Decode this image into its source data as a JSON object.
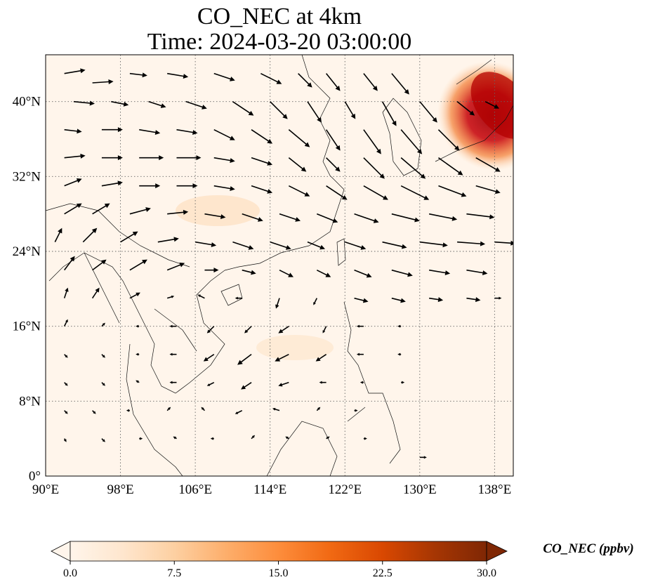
{
  "title": {
    "line1": "CO_NEC at 4km",
    "line2": "Time: 2024-03-20 03:00:00"
  },
  "map": {
    "extent": {
      "lon": [
        90,
        140
      ],
      "lat": [
        0,
        45
      ]
    },
    "lon_ticks": [
      {
        "value": 90,
        "label": "90°E"
      },
      {
        "value": 98,
        "label": "98°E"
      },
      {
        "value": 106,
        "label": "106°E"
      },
      {
        "value": 114,
        "label": "114°E"
      },
      {
        "value": 122,
        "label": "122°E"
      },
      {
        "value": 130,
        "label": "130°E"
      },
      {
        "value": 138,
        "label": "138°E"
      }
    ],
    "lat_ticks": [
      {
        "value": 0,
        "label": "0°"
      },
      {
        "value": 8,
        "label": "8°N"
      },
      {
        "value": 16,
        "label": "16°N"
      },
      {
        "value": 24,
        "label": "24°N"
      },
      {
        "value": 32,
        "label": "32°N"
      },
      {
        "value": 40,
        "label": "40°N"
      }
    ],
    "gridlines": true,
    "background_color": "#fff5eb",
    "plume_color": "#b30000",
    "plume_note_region": "high CO_NEC over Japan / Sea of Japan (lon 132–140, lat 33–45)"
  },
  "colorbar": {
    "label": "CO_NEC (ppbv)",
    "min": 0,
    "max": 30,
    "ticks": [
      {
        "value": 0,
        "label": "0.0"
      },
      {
        "value": 7.5,
        "label": "7.5"
      },
      {
        "value": 15,
        "label": "15.0"
      },
      {
        "value": 22.5,
        "label": "22.5"
      },
      {
        "value": 30,
        "label": "30.0"
      }
    ],
    "extend": "both",
    "colormap": [
      "#fff5eb",
      "#fee6ce",
      "#fdd0a2",
      "#fdae6b",
      "#fd8d3c",
      "#f16913",
      "#d94801",
      "#a63603",
      "#7f2704"
    ]
  },
  "wind_vectors": [
    [
      92,
      43,
      3,
      0.5
    ],
    [
      95,
      42,
      3,
      0.2
    ],
    [
      99,
      43,
      2.5,
      -0.3
    ],
    [
      103,
      43,
      3,
      -0.5
    ],
    [
      108,
      43,
      3,
      -1
    ],
    [
      113,
      43,
      3,
      -1.5
    ],
    [
      117,
      43,
      2,
      -2
    ],
    [
      120,
      43,
      2,
      -2.5
    ],
    [
      124,
      43,
      2,
      -2.5
    ],
    [
      127,
      43,
      2.5,
      -3
    ],
    [
      93,
      40,
      3,
      -0.3
    ],
    [
      97,
      40,
      2.5,
      -0.5
    ],
    [
      101,
      40,
      2.5,
      -0.8
    ],
    [
      105,
      40,
      3,
      -1
    ],
    [
      110,
      40,
      3,
      -2
    ],
    [
      114,
      40,
      2.5,
      -2.5
    ],
    [
      118,
      40,
      2,
      -3
    ],
    [
      122,
      40,
      1.5,
      -2.5
    ],
    [
      126,
      40,
      2,
      -3.5
    ],
    [
      130,
      40,
      2.5,
      -3
    ],
    [
      134,
      40,
      2.5,
      -2
    ],
    [
      137,
      40,
      2,
      -1
    ],
    [
      92,
      37,
      2.5,
      -0.3
    ],
    [
      96,
      37,
      3,
      0
    ],
    [
      100,
      37,
      3,
      -0.5
    ],
    [
      104,
      37,
      3,
      -0.5
    ],
    [
      108,
      37,
      3,
      -1.5
    ],
    [
      112,
      37,
      3,
      -2
    ],
    [
      116,
      37,
      3,
      -2.5
    ],
    [
      120,
      37,
      2,
      -3
    ],
    [
      124,
      37,
      2.5,
      -3.5
    ],
    [
      128,
      37,
      3,
      -3.5
    ],
    [
      132,
      37,
      3,
      -3
    ],
    [
      92,
      34,
      3,
      0.3
    ],
    [
      96,
      34,
      3,
      0
    ],
    [
      100,
      34,
      3.5,
      0
    ],
    [
      104,
      34,
      3.5,
      0
    ],
    [
      108,
      34,
      3,
      -0.5
    ],
    [
      112,
      34,
      3,
      -1
    ],
    [
      116,
      34,
      2.5,
      -2
    ],
    [
      120,
      34,
      2,
      -2
    ],
    [
      124,
      34,
      3,
      -3
    ],
    [
      128,
      34,
      3.5,
      -3
    ],
    [
      132,
      34,
      3.5,
      -2.5
    ],
    [
      136,
      34,
      3.5,
      -2
    ],
    [
      92,
      31,
      2.5,
      1
    ],
    [
      96,
      31,
      3,
      0.5
    ],
    [
      100,
      31,
      3,
      0
    ],
    [
      104,
      31,
      3,
      0
    ],
    [
      108,
      31,
      3,
      -0.5
    ],
    [
      112,
      31,
      3,
      -1
    ],
    [
      116,
      31,
      3,
      -1.5
    ],
    [
      120,
      31,
      3,
      -2
    ],
    [
      124,
      31,
      3.5,
      -2
    ],
    [
      128,
      31,
      4,
      -2
    ],
    [
      132,
      31,
      4,
      -1.5
    ],
    [
      136,
      31,
      3.5,
      -1
    ],
    [
      92,
      28,
      2.5,
      1.5
    ],
    [
      95,
      28,
      2.5,
      1.5
    ],
    [
      99,
      28,
      3,
      0.8
    ],
    [
      103,
      28,
      3,
      0.3
    ],
    [
      107,
      28,
      3,
      -0.5
    ],
    [
      111,
      28,
      3,
      -1
    ],
    [
      115,
      28,
      3,
      -1
    ],
    [
      119,
      28,
      3,
      -1.2
    ],
    [
      123,
      28,
      3.5,
      -1.2
    ],
    [
      127,
      28,
      4,
      -1
    ],
    [
      131,
      28,
      4,
      -0.8
    ],
    [
      135,
      28,
      4,
      -0.5
    ],
    [
      91,
      25,
      1,
      2
    ],
    [
      94,
      25,
      2,
      2
    ],
    [
      98,
      25,
      2.5,
      1.5
    ],
    [
      102,
      25,
      3,
      0.5
    ],
    [
      106,
      25,
      3,
      -0.5
    ],
    [
      110,
      25,
      3,
      -1
    ],
    [
      114,
      25,
      3,
      -1
    ],
    [
      118,
      25,
      2.5,
      -1
    ],
    [
      122,
      25,
      3,
      -1
    ],
    [
      126,
      25,
      3.5,
      -0.8
    ],
    [
      130,
      25,
      4,
      -0.5
    ],
    [
      134,
      25,
      4,
      -0.3
    ],
    [
      138,
      25,
      3,
      -0.2
    ],
    [
      92,
      22,
      1.5,
      2
    ],
    [
      95,
      22,
      2,
      1.5
    ],
    [
      99,
      22,
      2.5,
      1.5
    ],
    [
      103,
      22,
      2.5,
      1
    ],
    [
      107,
      22,
      2,
      0
    ],
    [
      111,
      22,
      2,
      -0.5
    ],
    [
      115,
      22,
      2,
      -1
    ],
    [
      119,
      22,
      2,
      -1
    ],
    [
      123,
      22,
      2.5,
      -1
    ],
    [
      127,
      22,
      3,
      -0.8
    ],
    [
      131,
      22,
      3,
      -0.5
    ],
    [
      135,
      22,
      3,
      -0.5
    ],
    [
      92,
      19,
      0.5,
      1.5
    ],
    [
      95,
      19,
      1,
      1.5
    ],
    [
      99,
      19,
      1.5,
      0.8
    ],
    [
      103,
      19,
      1,
      0.3
    ],
    [
      107,
      19,
      -1,
      0.5
    ],
    [
      111,
      19,
      -1,
      0
    ],
    [
      115,
      19,
      -0.5,
      -1.5
    ],
    [
      119,
      19,
      -0.5,
      -1
    ],
    [
      123,
      19,
      2,
      -0.5
    ],
    [
      127,
      19,
      2,
      -0.5
    ],
    [
      131,
      19,
      2,
      -0.3
    ],
    [
      135,
      19,
      2,
      -0.3
    ],
    [
      138,
      19,
      1,
      0
    ],
    [
      92,
      16,
      0.5,
      1
    ],
    [
      96,
      16,
      0.5,
      0.5
    ],
    [
      100,
      16,
      -0.5,
      0
    ],
    [
      104,
      16,
      -1,
      0
    ],
    [
      108,
      16,
      -1,
      -1
    ],
    [
      112,
      16,
      -1,
      -1
    ],
    [
      116,
      16,
      -1.5,
      -1
    ],
    [
      120,
      16,
      -0.5,
      -1
    ],
    [
      124,
      16,
      -1,
      0
    ],
    [
      128,
      16,
      -0.5,
      0
    ],
    [
      92,
      13,
      0.5,
      -0.5
    ],
    [
      96,
      13,
      0.5,
      -0.5
    ],
    [
      100,
      13,
      -0.5,
      0
    ],
    [
      104,
      13,
      -1,
      0
    ],
    [
      108,
      13,
      -1.5,
      -1
    ],
    [
      112,
      13,
      -2,
      -1.5
    ],
    [
      116,
      13,
      -2,
      -1
    ],
    [
      120,
      13,
      -1.5,
      -1
    ],
    [
      124,
      13,
      -1,
      0
    ],
    [
      128,
      13,
      -0.5,
      0
    ],
    [
      92,
      10,
      0.5,
      -0.5
    ],
    [
      96,
      10,
      0.5,
      -0.5
    ],
    [
      100,
      10,
      -0.5,
      0.3
    ],
    [
      104,
      10,
      -1,
      0
    ],
    [
      108,
      10,
      -1,
      -0.5
    ],
    [
      112,
      10,
      -1.5,
      -1
    ],
    [
      116,
      10,
      -1.5,
      -0.5
    ],
    [
      120,
      10,
      -1,
      0
    ],
    [
      124,
      10,
      -0.5,
      0
    ],
    [
      128,
      10,
      0.5,
      0
    ],
    [
      92,
      7,
      0.5,
      -0.5
    ],
    [
      95,
      7,
      0.5,
      -0.5
    ],
    [
      99,
      7,
      -0.5,
      0
    ],
    [
      103,
      7,
      0.5,
      0.5
    ],
    [
      107,
      7,
      -0.5,
      0.5
    ],
    [
      111,
      7,
      -1,
      -0.5
    ],
    [
      115,
      7,
      -1,
      0.3
    ],
    [
      119,
      7,
      0.5,
      0.5
    ],
    [
      123,
      7,
      0.5,
      0
    ],
    [
      92,
      4,
      0.3,
      -0.5
    ],
    [
      96,
      4,
      0.5,
      -0.5
    ],
    [
      100,
      4,
      0.5,
      0
    ],
    [
      104,
      4,
      -0.5,
      0.3
    ],
    [
      108,
      4,
      -0.5,
      0
    ],
    [
      112,
      4,
      0.5,
      0.5
    ],
    [
      116,
      4,
      -0.5,
      0.3
    ],
    [
      120,
      4,
      0.5,
      0.3
    ],
    [
      124,
      4,
      0.5,
      0
    ],
    [
      130,
      2,
      1,
      0
    ]
  ]
}
